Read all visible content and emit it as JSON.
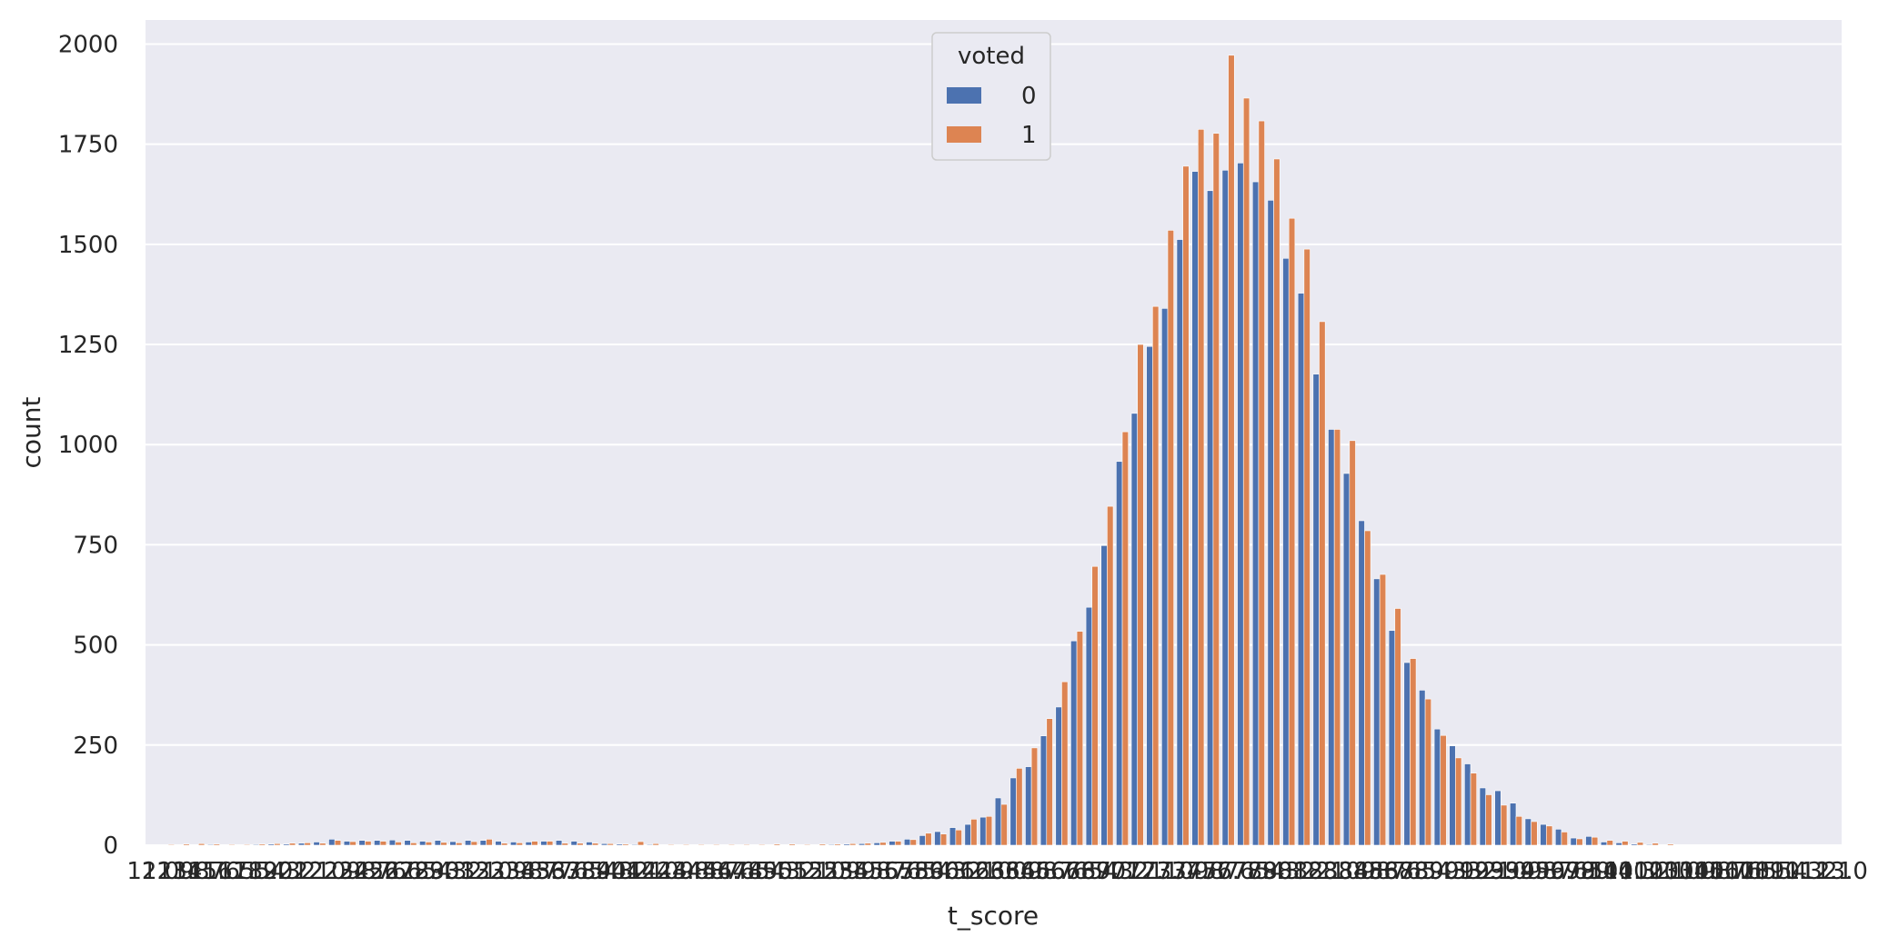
{
  "chart_data": {
    "type": "bar",
    "xlabel": "t_score",
    "ylabel": "count",
    "ylim": [
      0,
      2060
    ],
    "yticks": [
      0,
      250,
      500,
      750,
      1000,
      1250,
      1500,
      1750,
      2000
    ],
    "grid": true,
    "legend": {
      "title": "voted",
      "placement": "top-center"
    },
    "x_range_labels": [
      "12.0",
      "113.0"
    ],
    "series": [
      {
        "name": "0",
        "color": "#4c72b0",
        "values": [
          0,
          0,
          0,
          1,
          2,
          1,
          1,
          2,
          3,
          3,
          5,
          8,
          15,
          10,
          12,
          12,
          13,
          12,
          10,
          12,
          9,
          12,
          12,
          10,
          8,
          8,
          10,
          12,
          10,
          8,
          4,
          3,
          2,
          2,
          1,
          1,
          1,
          1,
          1,
          0,
          0,
          0,
          0,
          1,
          1,
          2,
          3,
          4,
          6,
          10,
          15,
          24,
          34,
          44,
          52,
          70,
          118,
          168,
          196,
          273,
          345,
          510,
          594,
          748,
          958,
          1078,
          1245,
          1340,
          1512,
          1682,
          1634,
          1685,
          1703,
          1656,
          1610,
          1465,
          1378,
          1176,
          1038,
          928,
          810,
          665,
          536,
          456,
          387,
          290,
          248,
          203,
          143,
          136,
          105,
          66,
          52,
          40,
          18,
          22,
          8,
          6,
          3,
          2,
          1,
          0,
          0,
          0,
          0,
          0,
          0,
          0,
          0,
          0,
          0,
          0
        ]
      },
      {
        "name": "1",
        "color": "#dd8452",
        "values": [
          1,
          2,
          3,
          4,
          3,
          2,
          2,
          3,
          4,
          5,
          6,
          5,
          12,
          9,
          10,
          10,
          8,
          6,
          8,
          7,
          6,
          9,
          15,
          5,
          6,
          10,
          10,
          5,
          5,
          5,
          4,
          3,
          9,
          4,
          2,
          2,
          2,
          2,
          2,
          2,
          2,
          3,
          3,
          2,
          3,
          3,
          4,
          5,
          7,
          10,
          14,
          30,
          28,
          38,
          65,
          72,
          102,
          192,
          243,
          316,
          408,
          534,
          696,
          846,
          1032,
          1250,
          1345,
          1535,
          1695,
          1787,
          1777,
          1972,
          1865,
          1808,
          1713,
          1565,
          1488,
          1307,
          1038,
          1010,
          785,
          676,
          591,
          466,
          365,
          274,
          218,
          180,
          126,
          100,
          72,
          59,
          48,
          33,
          16,
          20,
          12,
          10,
          7,
          5,
          3,
          1,
          1,
          1,
          0,
          0,
          0,
          0,
          0,
          0,
          0,
          0
        ]
      }
    ]
  }
}
